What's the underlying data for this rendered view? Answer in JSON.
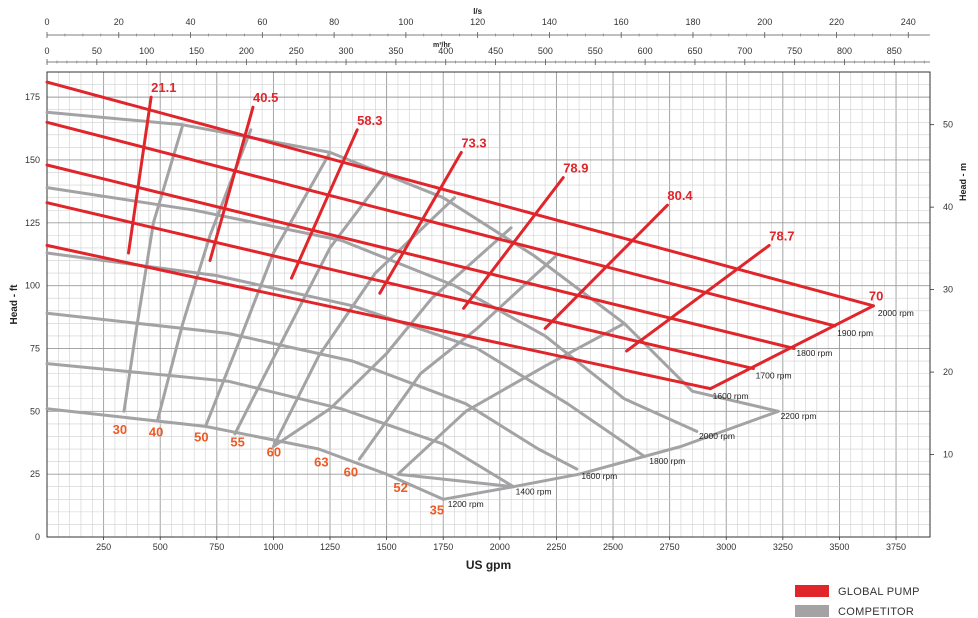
{
  "chart_data": {
    "type": "line",
    "xlabel": "US gpm",
    "ylabel": "Head - ft",
    "y2label": "Head - m",
    "top_axis_1_label": "l/s",
    "top_axis_2_label": "m³/hr",
    "xlim": [
      0,
      3900
    ],
    "ylim": [
      0,
      185
    ],
    "x_ticks": [
      250,
      500,
      750,
      1000,
      1250,
      1500,
      1750,
      2000,
      2250,
      2500,
      2750,
      3000,
      3250,
      3500,
      3750
    ],
    "y_ticks": [
      0,
      25,
      50,
      75,
      100,
      125,
      150,
      175
    ],
    "y2_ticks": [
      10,
      20,
      30,
      40,
      50
    ],
    "ls_ticks": [
      0,
      20,
      40,
      60,
      80,
      100,
      120,
      140,
      160,
      180,
      200,
      220,
      240
    ],
    "m3hr_ticks": [
      0,
      50,
      100,
      150,
      200,
      250,
      300,
      350,
      400,
      450,
      500,
      550,
      600,
      650,
      700,
      750,
      800,
      850
    ],
    "grid": true,
    "colors": {
      "global": "#e0252b",
      "competitor": "#a3a3a5",
      "orange_label": "#ee5a24"
    },
    "legend": {
      "placement": "bottom-right",
      "items": [
        {
          "name": "GLOBAL PUMP",
          "color": "#e0252b"
        },
        {
          "name": "COMPETITOR",
          "color": "#a3a3a5"
        }
      ]
    },
    "series": [
      {
        "name": "GLOBAL PUMP",
        "kind": "speed",
        "points": [
          [
            0,
            181
          ],
          [
            3650,
            92
          ]
        ]
      },
      {
        "name": "GLOBAL PUMP",
        "kind": "speed",
        "points": [
          [
            0,
            165
          ],
          [
            3480,
            84
          ]
        ]
      },
      {
        "name": "GLOBAL PUMP",
        "kind": "speed",
        "points": [
          [
            0,
            148
          ],
          [
            3300,
            75
          ]
        ]
      },
      {
        "name": "GLOBAL PUMP",
        "kind": "speed",
        "points": [
          [
            0,
            133
          ],
          [
            3120,
            67
          ]
        ]
      },
      {
        "name": "GLOBAL PUMP",
        "kind": "speed",
        "points": [
          [
            0,
            116
          ],
          [
            2930,
            59
          ]
        ]
      },
      {
        "name": "GLOBAL PUMP",
        "kind": "efficiency",
        "points": [
          [
            460,
            175
          ],
          [
            360,
            113
          ]
        ]
      },
      {
        "name": "GLOBAL PUMP",
        "kind": "efficiency",
        "points": [
          [
            910,
            171
          ],
          [
            720,
            110
          ]
        ]
      },
      {
        "name": "GLOBAL PUMP",
        "kind": "efficiency",
        "points": [
          [
            1370,
            162
          ],
          [
            1080,
            103
          ]
        ]
      },
      {
        "name": "GLOBAL PUMP",
        "kind": "efficiency",
        "points": [
          [
            1830,
            153
          ],
          [
            1470,
            97
          ]
        ]
      },
      {
        "name": "GLOBAL PUMP",
        "kind": "efficiency",
        "points": [
          [
            2280,
            143
          ],
          [
            1840,
            91
          ]
        ]
      },
      {
        "name": "GLOBAL PUMP",
        "kind": "efficiency",
        "points": [
          [
            2740,
            132
          ],
          [
            2200,
            83
          ]
        ]
      },
      {
        "name": "GLOBAL PUMP",
        "kind": "efficiency",
        "points": [
          [
            3190,
            116
          ],
          [
            2560,
            74
          ]
        ]
      },
      {
        "name": "GLOBAL PUMP",
        "kind": "efficiency",
        "points": [
          [
            3650,
            92
          ],
          [
            2930,
            59
          ]
        ]
      },
      {
        "name": "COMPETITOR",
        "kind": "speed",
        "points": [
          [
            0,
            169
          ],
          [
            600,
            164
          ],
          [
            1250,
            153
          ],
          [
            1750,
            135
          ],
          [
            2150,
            112
          ],
          [
            2550,
            85
          ],
          [
            2850,
            58
          ],
          [
            3230,
            50
          ]
        ]
      },
      {
        "name": "COMPETITOR",
        "kind": "speed",
        "points": [
          [
            0,
            139
          ],
          [
            650,
            130
          ],
          [
            1300,
            118
          ],
          [
            1800,
            100
          ],
          [
            2200,
            80
          ],
          [
            2550,
            55
          ],
          [
            2870,
            42
          ]
        ]
      },
      {
        "name": "COMPETITOR",
        "kind": "speed",
        "points": [
          [
            0,
            113
          ],
          [
            750,
            104
          ],
          [
            1350,
            92
          ],
          [
            1900,
            75
          ],
          [
            2300,
            53
          ],
          [
            2640,
            32
          ]
        ]
      },
      {
        "name": "COMPETITOR",
        "kind": "speed",
        "points": [
          [
            0,
            89
          ],
          [
            800,
            81
          ],
          [
            1350,
            70
          ],
          [
            1850,
            53
          ],
          [
            2170,
            35
          ],
          [
            2340,
            27
          ]
        ]
      },
      {
        "name": "COMPETITOR",
        "kind": "speed",
        "points": [
          [
            0,
            69
          ],
          [
            800,
            62
          ],
          [
            1300,
            51
          ],
          [
            1750,
            37
          ],
          [
            2060,
            20
          ]
        ]
      },
      {
        "name": "COMPETITOR",
        "kind": "speed",
        "points": [
          [
            0,
            51
          ],
          [
            700,
            44
          ],
          [
            1200,
            35
          ],
          [
            1500,
            25
          ],
          [
            1750,
            15
          ]
        ]
      },
      {
        "name": "COMPETITOR",
        "kind": "efficiency",
        "points": [
          [
            600,
            164
          ],
          [
            470,
            125
          ],
          [
            390,
            80
          ],
          [
            340,
            50
          ]
        ]
      },
      {
        "name": "COMPETITOR",
        "kind": "efficiency",
        "points": [
          [
            900,
            162
          ],
          [
            720,
            120
          ],
          [
            600,
            85
          ],
          [
            490,
            47
          ]
        ]
      },
      {
        "name": "COMPETITOR",
        "kind": "efficiency",
        "points": [
          [
            1250,
            153
          ],
          [
            1000,
            113
          ],
          [
            850,
            78
          ],
          [
            700,
            44
          ]
        ]
      },
      {
        "name": "COMPETITOR",
        "kind": "efficiency",
        "points": [
          [
            1500,
            145
          ],
          [
            1250,
            115
          ],
          [
            1050,
            80
          ],
          [
            830,
            41
          ]
        ]
      },
      {
        "name": "COMPETITOR",
        "kind": "efficiency",
        "points": [
          [
            1800,
            135
          ],
          [
            1450,
            105
          ],
          [
            1200,
            72
          ],
          [
            1000,
            36
          ]
        ]
      },
      {
        "name": "COMPETITOR",
        "kind": "efficiency",
        "points": [
          [
            2050,
            123
          ],
          [
            1700,
            95
          ],
          [
            1500,
            73
          ],
          [
            1250,
            51
          ],
          [
            1000,
            36
          ]
        ]
      },
      {
        "name": "COMPETITOR",
        "kind": "efficiency",
        "points": [
          [
            2250,
            112
          ],
          [
            1900,
            83
          ],
          [
            1650,
            65
          ],
          [
            1380,
            31
          ]
        ]
      },
      {
        "name": "COMPETITOR",
        "kind": "efficiency",
        "points": [
          [
            2550,
            85
          ],
          [
            2200,
            68
          ],
          [
            1850,
            50
          ],
          [
            1550,
            25
          ]
        ]
      },
      {
        "name": "COMPETITOR",
        "kind": "efficiency",
        "points": [
          [
            1550,
            25
          ],
          [
            2060,
            20
          ],
          [
            2350,
            25
          ],
          [
            2800,
            36
          ],
          [
            3230,
            50
          ]
        ]
      },
      {
        "name": "COMPETITOR",
        "kind": "efficiency",
        "points": [
          [
            1750,
            15
          ],
          [
            2060,
            20
          ]
        ]
      }
    ],
    "labels": [
      {
        "text": "21.1",
        "x": 460,
        "y": 177,
        "style": "red"
      },
      {
        "text": "40.5",
        "x": 910,
        "y": 173,
        "style": "red"
      },
      {
        "text": "58.3",
        "x": 1370,
        "y": 164,
        "style": "red"
      },
      {
        "text": "73.3",
        "x": 1830,
        "y": 155,
        "style": "red"
      },
      {
        "text": "78.9",
        "x": 2280,
        "y": 145,
        "style": "red"
      },
      {
        "text": "80.4",
        "x": 2740,
        "y": 134,
        "style": "red"
      },
      {
        "text": "78.7",
        "x": 3190,
        "y": 118,
        "style": "red"
      },
      {
        "text": "70",
        "x": 3630,
        "y": 94,
        "style": "red"
      },
      {
        "text": "2000 rpm",
        "x": 3670,
        "y": 88,
        "style": "rpm"
      },
      {
        "text": "1900 rpm",
        "x": 3490,
        "y": 80,
        "style": "rpm"
      },
      {
        "text": "1800 rpm",
        "x": 3310,
        "y": 72,
        "style": "rpm"
      },
      {
        "text": "1700 rpm",
        "x": 3130,
        "y": 63,
        "style": "rpm"
      },
      {
        "text": "1600 rpm",
        "x": 2940,
        "y": 55,
        "style": "rpm"
      },
      {
        "text": "2200 rpm",
        "x": 3240,
        "y": 47,
        "style": "rpm"
      },
      {
        "text": "2000 rpm",
        "x": 2880,
        "y": 39,
        "style": "rpm"
      },
      {
        "text": "1800 rpm",
        "x": 2660,
        "y": 29,
        "style": "rpm"
      },
      {
        "text": "1600 rpm",
        "x": 2360,
        "y": 23,
        "style": "rpm"
      },
      {
        "text": "1400 rpm",
        "x": 2070,
        "y": 17,
        "style": "rpm"
      },
      {
        "text": "1200 rpm",
        "x": 1770,
        "y": 12,
        "style": "rpm"
      },
      {
        "text": "30",
        "x": 290,
        "y": 41,
        "style": "orange"
      },
      {
        "text": "40",
        "x": 450,
        "y": 40,
        "style": "orange"
      },
      {
        "text": "50",
        "x": 650,
        "y": 38,
        "style": "orange"
      },
      {
        "text": "55",
        "x": 810,
        "y": 36,
        "style": "orange"
      },
      {
        "text": "60",
        "x": 970,
        "y": 32,
        "style": "orange"
      },
      {
        "text": "63",
        "x": 1180,
        "y": 28,
        "style": "orange"
      },
      {
        "text": "60",
        "x": 1310,
        "y": 24,
        "style": "orange"
      },
      {
        "text": "52",
        "x": 1530,
        "y": 18,
        "style": "orange"
      },
      {
        "text": "35",
        "x": 1690,
        "y": 9,
        "style": "orange"
      }
    ]
  }
}
